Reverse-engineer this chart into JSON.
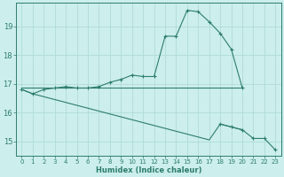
{
  "xlabel": "Humidex (Indice chaleur)",
  "bg_color": "#cceeed",
  "grid_color": "#b0dbd8",
  "line_color": "#2e7d6e",
  "xlim": [
    -0.5,
    23.5
  ],
  "ylim": [
    14.5,
    19.8
  ],
  "yticks": [
    15,
    16,
    17,
    18,
    19
  ],
  "xticks": [
    0,
    1,
    2,
    3,
    4,
    5,
    6,
    7,
    8,
    9,
    10,
    11,
    12,
    13,
    14,
    15,
    16,
    17,
    18,
    19,
    20,
    21,
    22,
    23
  ],
  "line1_x": [
    0,
    1,
    2,
    3,
    4,
    5,
    6,
    7,
    8,
    9,
    10,
    11,
    12,
    13,
    14,
    15,
    16,
    17,
    18,
    19,
    20,
    21,
    22,
    23
  ],
  "line1_y": [
    16.8,
    16.65,
    16.8,
    16.85,
    16.9,
    16.85,
    16.85,
    16.9,
    17.05,
    17.15,
    17.3,
    17.25,
    17.25,
    18.65,
    18.65,
    19.55,
    19.5,
    19.15,
    18.75,
    18.2,
    16.85,
    null,
    null,
    null
  ],
  "line2_x": [
    0,
    1,
    2,
    3,
    4,
    5,
    6,
    7,
    8,
    9,
    10,
    11,
    12,
    13,
    14,
    15,
    16,
    17,
    18,
    19,
    20,
    21,
    22,
    23
  ],
  "line2_y": [
    16.85,
    16.85,
    16.85,
    16.85,
    16.85,
    16.85,
    16.85,
    16.85,
    16.85,
    16.85,
    16.85,
    16.85,
    16.85,
    16.85,
    16.85,
    16.85,
    16.85,
    16.85,
    16.85,
    16.85,
    16.85,
    null,
    null,
    null
  ],
  "line3_x": [
    0,
    1,
    2,
    3,
    4,
    5,
    6,
    7,
    8,
    9,
    10,
    11,
    12,
    13,
    14,
    15,
    16,
    17,
    18,
    19,
    20,
    21,
    22,
    23
  ],
  "line3_y": [
    16.8,
    16.65,
    16.55,
    16.45,
    16.35,
    16.25,
    16.15,
    16.05,
    15.95,
    15.85,
    15.75,
    15.65,
    15.55,
    15.45,
    15.35,
    15.25,
    15.15,
    15.05,
    15.6,
    15.5,
    15.4,
    15.1,
    15.1,
    14.7
  ]
}
